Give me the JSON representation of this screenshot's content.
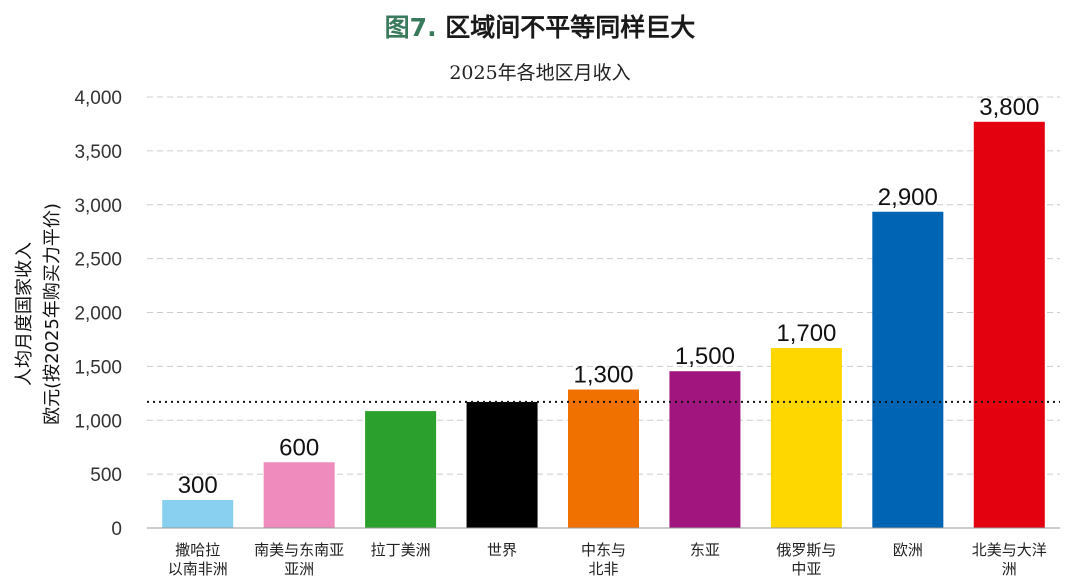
{
  "title_prefix": "图7.",
  "title_text": "区域间不平等同样巨大",
  "chart_data": {
    "type": "bar",
    "title": "图7. 区域间不平等同样巨大",
    "subtitle": "2025年各地区月收入",
    "ylabel_line1": "人均月度国家收入",
    "ylabel_line2": "欧元(按2025年购买力平价)",
    "ylim": [
      0,
      4000
    ],
    "yticks": [
      0,
      500,
      1000,
      1500,
      2000,
      2500,
      3000,
      3500,
      4000
    ],
    "ytick_labels": [
      "0",
      "500",
      "1,000",
      "1,500",
      "2,000",
      "2,500",
      "3,000",
      "3,500",
      "4,000"
    ],
    "grid": true,
    "reference_line": 1170,
    "categories": [
      [
        "撒哈拉",
        "以南非洲"
      ],
      [
        "南美与东南亚",
        "亚洲"
      ],
      [
        "拉丁美洲"
      ],
      [
        "世界"
      ],
      [
        "中东与",
        "北非"
      ],
      [
        "东亚"
      ],
      [
        "俄罗斯与",
        "中亚"
      ],
      [
        "欧洲"
      ],
      [
        "北美与大洋",
        "洲"
      ]
    ],
    "values": [
      260,
      610,
      1085,
      1170,
      1285,
      1455,
      1670,
      2935,
      3770
    ],
    "value_labels": [
      "300",
      "600",
      "",
      "",
      "1,300",
      "1,500",
      "1,700",
      "2,900",
      "3,800"
    ],
    "colors": [
      "#89cff0",
      "#f08bbd",
      "#2ca02c",
      "#000000",
      "#f07000",
      "#a0157e",
      "#ffd700",
      "#0064b4",
      "#e3000f"
    ]
  }
}
